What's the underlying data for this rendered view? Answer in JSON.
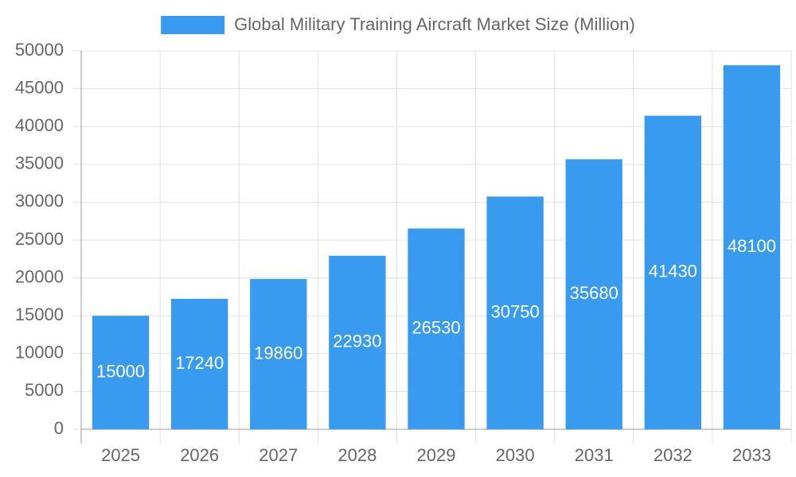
{
  "chart_data": {
    "type": "bar",
    "categories": [
      "2025",
      "2026",
      "2027",
      "2028",
      "2029",
      "2030",
      "2031",
      "2032",
      "2033"
    ],
    "series": [
      {
        "name": "Global Military Training Aircraft Market Size (Million)",
        "color": "#389bef",
        "values": [
          15000,
          17240,
          19860,
          22930,
          26530,
          30750,
          35680,
          41430,
          48100
        ]
      }
    ],
    "ylim": [
      0,
      50000
    ],
    "yticks": [
      0,
      5000,
      10000,
      15000,
      20000,
      25000,
      30000,
      35000,
      40000,
      45000,
      50000
    ],
    "grid": true,
    "legend": "top",
    "data_labels": true
  }
}
